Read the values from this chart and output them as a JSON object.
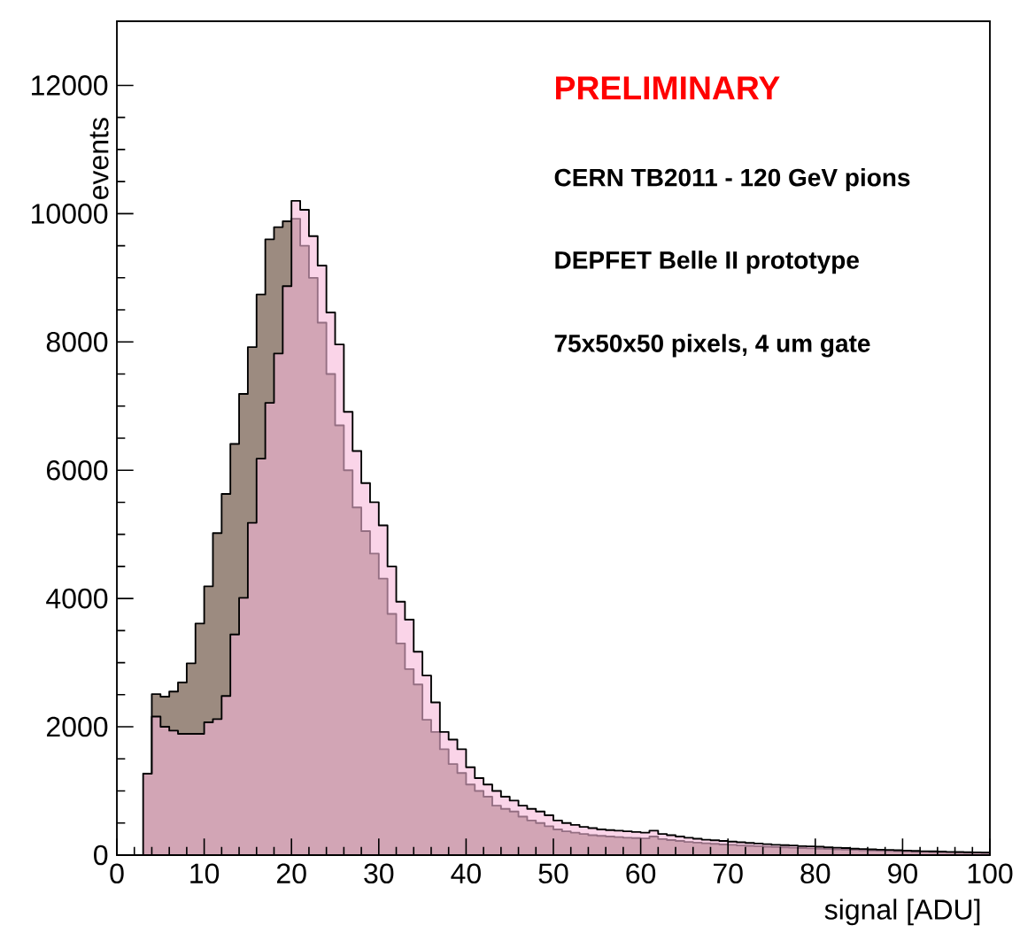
{
  "chart_data": {
    "type": "histogram",
    "xlabel": "signal [ADU]",
    "ylabel": "events",
    "annotations": [
      "PRELIMINARY",
      "CERN TB2011 - 120 GeV pions",
      "DEPFET Belle II prototype",
      "75x50x50 pixels, 4 um gate"
    ],
    "bins": [
      3,
      4,
      5,
      6,
      7,
      8,
      9,
      10,
      11,
      12,
      13,
      14,
      15,
      16,
      17,
      18,
      19,
      20,
      21,
      22,
      23,
      24,
      25,
      26,
      27,
      28,
      29,
      30,
      31,
      32,
      33,
      34,
      35,
      36,
      37,
      38,
      39,
      40,
      41,
      42,
      43,
      44,
      45,
      46,
      47,
      48,
      49,
      50,
      51,
      52,
      53,
      54,
      55,
      56,
      57,
      58,
      59,
      60,
      61,
      62,
      63,
      64,
      65,
      66,
      67,
      68,
      69,
      70,
      71,
      72,
      73,
      74,
      75,
      76,
      77,
      78,
      79,
      80,
      81,
      82,
      83,
      84,
      85,
      86,
      87,
      88,
      89,
      90,
      91,
      92,
      93,
      94,
      95,
      96,
      97,
      98,
      99,
      100
    ],
    "series": [
      {
        "color": "#f7b8d8",
        "values": [
          1270,
          2160,
          2000,
          1940,
          1890,
          1890,
          1890,
          2070,
          2120,
          2480,
          3440,
          4010,
          5180,
          6180,
          7050,
          7820,
          8870,
          10200,
          10060,
          9650,
          9190,
          8460,
          7960,
          6910,
          6300,
          5800,
          5500,
          5140,
          4500,
          3950,
          3670,
          3170,
          2800,
          2380,
          1920,
          1800,
          1650,
          1370,
          1200,
          1100,
          1000,
          910,
          850,
          770,
          720,
          680,
          620,
          540,
          500,
          470,
          440,
          420,
          400,
          390,
          380,
          370,
          360,
          350,
          380,
          330,
          310,
          290,
          270,
          255,
          240,
          230,
          220,
          210,
          200,
          190,
          180,
          170,
          160,
          155,
          150,
          140,
          135,
          130,
          120,
          115,
          110,
          100,
          95,
          90,
          85,
          80,
          75,
          70,
          65,
          60,
          58,
          55,
          50,
          48,
          45,
          42,
          40
        ]
      },
      {
        "color": "#9c8b80",
        "values": [
          1270,
          2510,
          2470,
          2550,
          2690,
          2990,
          3610,
          4190,
          5020,
          5630,
          6410,
          7190,
          7920,
          8740,
          9600,
          9790,
          9880,
          9920,
          9500,
          9000,
          8300,
          7500,
          6700,
          6000,
          5420,
          5050,
          4700,
          4310,
          3760,
          3300,
          2900,
          2660,
          2110,
          1920,
          1650,
          1420,
          1280,
          1100,
          1000,
          910,
          770,
          720,
          680,
          600,
          540,
          500,
          450,
          400,
          370,
          350,
          330,
          310,
          300,
          290,
          280,
          270,
          265,
          260,
          290,
          250,
          235,
          220,
          205,
          195,
          185,
          175,
          165,
          160,
          150,
          145,
          140,
          130,
          125,
          120,
          115,
          110,
          105,
          100,
          95,
          90,
          85,
          80,
          75,
          72,
          68,
          64,
          60,
          56,
          52,
          50,
          47,
          44,
          42,
          40,
          38,
          36,
          34
        ]
      }
    ],
    "xlim": [
      0,
      100
    ],
    "ylim": [
      0,
      13000
    ],
    "xticks": [
      0,
      10,
      20,
      30,
      40,
      50,
      60,
      70,
      80,
      90,
      100
    ],
    "yticks": [
      0,
      2000,
      4000,
      6000,
      8000,
      10000,
      12000
    ]
  }
}
